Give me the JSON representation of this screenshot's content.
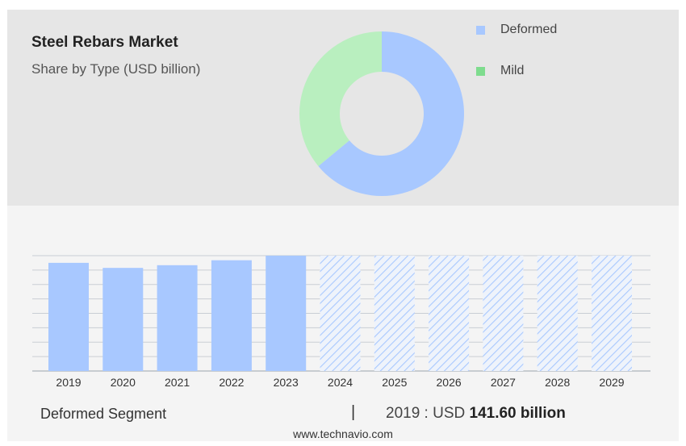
{
  "header": {
    "title": "Steel Rebars Market",
    "subtitle": "Share by Type (USD billion)"
  },
  "colors": {
    "deformed": "#a8c8ff",
    "mild": "#b9efbf",
    "mild_legend": "#7edc8e",
    "forecast_hatch": "#a8c8ff"
  },
  "chart_data": [
    {
      "type": "pie",
      "variant": "donut",
      "legend_position": "top-right",
      "slices": [
        {
          "name": "Deformed",
          "share": 0.64
        },
        {
          "name": "Mild",
          "share": 0.36
        }
      ]
    },
    {
      "type": "bar",
      "categories": [
        "2019",
        "2020",
        "2021",
        "2022",
        "2023",
        "2024",
        "2025",
        "2026",
        "2027",
        "2028",
        "2029"
      ],
      "series": [
        {
          "name": "Deformed",
          "values": [
            141.6,
            135.0,
            138.5,
            145.0,
            151.0,
            151.0,
            151.0,
            151.0,
            151.0,
            151.0,
            151.0
          ],
          "forecast_from": "2024"
        }
      ],
      "ylim": [
        0,
        160
      ],
      "grid": true
    }
  ],
  "footer": {
    "segment_label": "Deformed Segment",
    "separator": "|",
    "stat_prefix": "2019 : USD ",
    "stat_value": "141.60 billion",
    "source": "www.technavio.com"
  }
}
